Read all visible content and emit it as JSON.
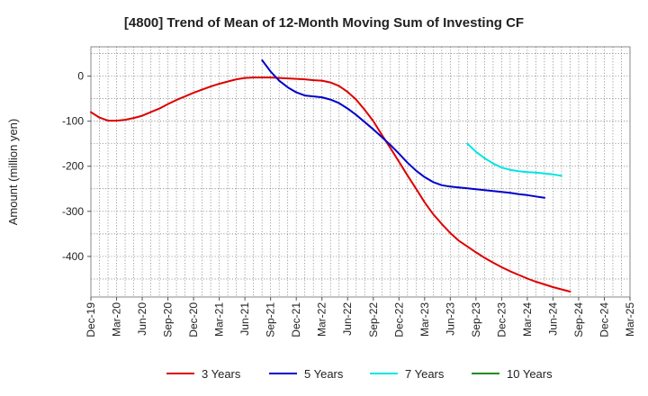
{
  "chart_data": {
    "type": "line",
    "title": "[4800]  Trend of Mean of 12-Month Moving Sum of Investing CF",
    "xlabel": "",
    "ylabel": "Amount (million yen)",
    "ylim": [
      -490,
      65
    ],
    "yticks": [
      0,
      -100,
      -200,
      -300,
      -400
    ],
    "ytick_labels": [
      "0",
      "-100",
      "-200",
      "-300",
      "-400"
    ],
    "x_categories": [
      "Dec-19",
      "Mar-20",
      "Jun-20",
      "Sep-20",
      "Dec-20",
      "Mar-21",
      "Jun-21",
      "Sep-21",
      "Dec-21",
      "Mar-22",
      "Jun-22",
      "Sep-22",
      "Dec-22",
      "Mar-23",
      "Jun-23",
      "Sep-23",
      "Dec-23",
      "Mar-24",
      "Jun-24",
      "Sep-24",
      "Dec-24",
      "Mar-25"
    ],
    "grid": true,
    "legend_position": "bottom",
    "series": [
      {
        "name": "3 Years",
        "color": "#dd0000",
        "points": [
          [
            0,
            -80
          ],
          [
            0.33,
            -92
          ],
          [
            0.67,
            -99
          ],
          [
            1,
            -99
          ],
          [
            1.33,
            -97
          ],
          [
            1.67,
            -93
          ],
          [
            2,
            -88
          ],
          [
            2.33,
            -80
          ],
          [
            2.67,
            -72
          ],
          [
            3,
            -62
          ],
          [
            3.33,
            -53
          ],
          [
            3.67,
            -45
          ],
          [
            4,
            -37
          ],
          [
            4.33,
            -30
          ],
          [
            4.67,
            -23
          ],
          [
            5,
            -17
          ],
          [
            5.33,
            -12
          ],
          [
            5.67,
            -7
          ],
          [
            6,
            -4
          ],
          [
            6.33,
            -3
          ],
          [
            6.67,
            -3
          ],
          [
            7,
            -3
          ],
          [
            7.33,
            -4
          ],
          [
            7.67,
            -5
          ],
          [
            8,
            -6
          ],
          [
            8.33,
            -7
          ],
          [
            8.67,
            -9
          ],
          [
            9,
            -10
          ],
          [
            9.33,
            -14
          ],
          [
            9.67,
            -22
          ],
          [
            10,
            -35
          ],
          [
            10.33,
            -52
          ],
          [
            10.67,
            -75
          ],
          [
            11,
            -100
          ],
          [
            11.33,
            -130
          ],
          [
            11.67,
            -160
          ],
          [
            12,
            -190
          ],
          [
            12.33,
            -220
          ],
          [
            12.67,
            -250
          ],
          [
            13,
            -280
          ],
          [
            13.33,
            -306
          ],
          [
            13.67,
            -328
          ],
          [
            14,
            -348
          ],
          [
            14.33,
            -365
          ],
          [
            14.67,
            -378
          ],
          [
            15,
            -391
          ],
          [
            15.33,
            -403
          ],
          [
            15.67,
            -414
          ],
          [
            16,
            -424
          ],
          [
            16.33,
            -433
          ],
          [
            16.67,
            -441
          ],
          [
            17,
            -449
          ],
          [
            17.33,
            -456
          ],
          [
            17.67,
            -462
          ],
          [
            18,
            -468
          ],
          [
            18.33,
            -473
          ],
          [
            18.67,
            -478
          ]
        ]
      },
      {
        "name": "5 Years",
        "color": "#0000cc",
        "points": [
          [
            6.67,
            35
          ],
          [
            7,
            10
          ],
          [
            7.33,
            -10
          ],
          [
            7.67,
            -25
          ],
          [
            8,
            -36
          ],
          [
            8.33,
            -43
          ],
          [
            8.67,
            -45
          ],
          [
            9,
            -47
          ],
          [
            9.33,
            -52
          ],
          [
            9.67,
            -60
          ],
          [
            10,
            -72
          ],
          [
            10.33,
            -86
          ],
          [
            10.67,
            -102
          ],
          [
            11,
            -118
          ],
          [
            11.33,
            -135
          ],
          [
            11.67,
            -153
          ],
          [
            12,
            -172
          ],
          [
            12.33,
            -192
          ],
          [
            12.67,
            -210
          ],
          [
            13,
            -224
          ],
          [
            13.33,
            -235
          ],
          [
            13.67,
            -242
          ],
          [
            14,
            -245
          ],
          [
            14.33,
            -247
          ],
          [
            14.67,
            -249
          ],
          [
            15,
            -251
          ],
          [
            15.33,
            -253
          ],
          [
            15.67,
            -255
          ],
          [
            16,
            -257
          ],
          [
            16.33,
            -259
          ],
          [
            16.67,
            -262
          ],
          [
            17,
            -264
          ],
          [
            17.33,
            -267
          ],
          [
            17.67,
            -270
          ]
        ]
      },
      {
        "name": "7 Years",
        "color": "#00e5e5",
        "points": [
          [
            14.67,
            -150
          ],
          [
            15,
            -168
          ],
          [
            15.33,
            -182
          ],
          [
            15.67,
            -194
          ],
          [
            16,
            -203
          ],
          [
            16.33,
            -208
          ],
          [
            16.67,
            -211
          ],
          [
            17,
            -213
          ],
          [
            17.33,
            -214
          ],
          [
            17.67,
            -216
          ],
          [
            18,
            -218
          ],
          [
            18.33,
            -221
          ]
        ]
      },
      {
        "name": "10 Years",
        "color": "#228b22",
        "points": []
      }
    ]
  }
}
